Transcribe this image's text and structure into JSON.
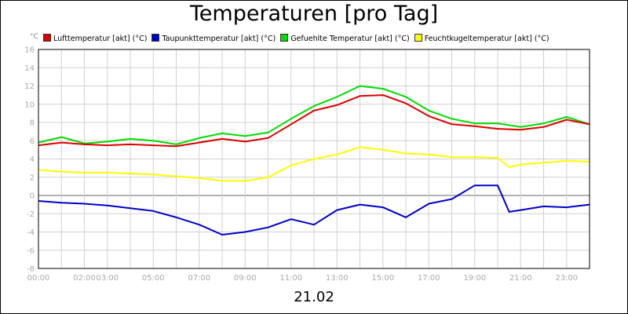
{
  "chart_data": {
    "type": "line",
    "title": "Temperaturen [pro Tag]",
    "date_label": "21.02",
    "y_unit": "°C",
    "ylim": [
      -8,
      16
    ],
    "y_ticks": [
      16,
      14,
      12,
      10,
      8,
      6,
      4,
      2,
      0,
      -2,
      -4,
      -6,
      -8
    ],
    "xlim": [
      0,
      24
    ],
    "x_tick_labels": [
      {
        "label": "00:00",
        "hour": 0
      },
      {
        "label": "02:00",
        "hour": 2
      },
      {
        "label": "03:00",
        "hour": 3
      },
      {
        "label": "05:00",
        "hour": 5
      },
      {
        "label": "07:00",
        "hour": 7
      },
      {
        "label": "09:00",
        "hour": 9
      },
      {
        "label": "11:00",
        "hour": 11
      },
      {
        "label": "13:00",
        "hour": 13
      },
      {
        "label": "15:00",
        "hour": 15
      },
      {
        "label": "17:00",
        "hour": 17
      },
      {
        "label": "19:00",
        "hour": 19
      },
      {
        "label": "21:00",
        "hour": 21
      },
      {
        "label": "23:00",
        "hour": 23
      }
    ],
    "grid": true,
    "series": [
      {
        "name": "Lufttemperatur [akt] (°C)",
        "color": "#dd0000",
        "points": [
          [
            0,
            5.5
          ],
          [
            1,
            5.8
          ],
          [
            2,
            5.6
          ],
          [
            3,
            5.5
          ],
          [
            4,
            5.6
          ],
          [
            5,
            5.5
          ],
          [
            6,
            5.4
          ],
          [
            7,
            5.8
          ],
          [
            8,
            6.2
          ],
          [
            9,
            5.9
          ],
          [
            10,
            6.3
          ],
          [
            11,
            7.8
          ],
          [
            12,
            9.3
          ],
          [
            13,
            9.9
          ],
          [
            14,
            10.9
          ],
          [
            15,
            11.0
          ],
          [
            16,
            10.1
          ],
          [
            17,
            8.7
          ],
          [
            18,
            7.8
          ],
          [
            19,
            7.6
          ],
          [
            20,
            7.3
          ],
          [
            21,
            7.2
          ],
          [
            22,
            7.5
          ],
          [
            23,
            8.3
          ],
          [
            24,
            7.8
          ]
        ]
      },
      {
        "name": "Taupunkttemperatur [akt] (°C)",
        "color": "#0000cc",
        "points": [
          [
            0,
            -0.6
          ],
          [
            1,
            -0.8
          ],
          [
            2,
            -0.9
          ],
          [
            3,
            -1.1
          ],
          [
            4,
            -1.4
          ],
          [
            5,
            -1.7
          ],
          [
            6,
            -2.4
          ],
          [
            7,
            -3.2
          ],
          [
            8,
            -4.3
          ],
          [
            9,
            -4.0
          ],
          [
            10,
            -3.5
          ],
          [
            11,
            -2.6
          ],
          [
            12,
            -3.2
          ],
          [
            13,
            -1.6
          ],
          [
            14,
            -1.0
          ],
          [
            15,
            -1.3
          ],
          [
            16,
            -2.4
          ],
          [
            17,
            -0.9
          ],
          [
            18,
            -0.4
          ],
          [
            19,
            1.1
          ],
          [
            20,
            1.1
          ],
          [
            20.5,
            -1.8
          ],
          [
            21,
            -1.6
          ],
          [
            22,
            -1.2
          ],
          [
            23,
            -1.3
          ],
          [
            24,
            -1.0
          ]
        ]
      },
      {
        "name": "Gefuehlte Temperatur [akt] (°C)",
        "color": "#00dd00",
        "points": [
          [
            0,
            5.8
          ],
          [
            1,
            6.4
          ],
          [
            2,
            5.7
          ],
          [
            3,
            5.9
          ],
          [
            4,
            6.2
          ],
          [
            5,
            6.0
          ],
          [
            6,
            5.6
          ],
          [
            7,
            6.3
          ],
          [
            8,
            6.8
          ],
          [
            9,
            6.5
          ],
          [
            10,
            6.9
          ],
          [
            11,
            8.4
          ],
          [
            12,
            9.8
          ],
          [
            13,
            10.8
          ],
          [
            14,
            12.0
          ],
          [
            15,
            11.7
          ],
          [
            16,
            10.8
          ],
          [
            17,
            9.3
          ],
          [
            18,
            8.4
          ],
          [
            19,
            7.9
          ],
          [
            20,
            7.9
          ],
          [
            21,
            7.5
          ],
          [
            22,
            7.9
          ],
          [
            23,
            8.6
          ],
          [
            24,
            7.8
          ]
        ]
      },
      {
        "name": "Feuchtkugeltemperatur [akt] (°C)",
        "color": "#ffff00",
        "points": [
          [
            0,
            2.8
          ],
          [
            1,
            2.6
          ],
          [
            2,
            2.5
          ],
          [
            3,
            2.5
          ],
          [
            4,
            2.4
          ],
          [
            5,
            2.3
          ],
          [
            6,
            2.1
          ],
          [
            7,
            1.9
          ],
          [
            8,
            1.6
          ],
          [
            9,
            1.6
          ],
          [
            10,
            2.0
          ],
          [
            11,
            3.3
          ],
          [
            12,
            4.0
          ],
          [
            13,
            4.5
          ],
          [
            14,
            5.3
          ],
          [
            15,
            5.0
          ],
          [
            16,
            4.6
          ],
          [
            17,
            4.5
          ],
          [
            18,
            4.2
          ],
          [
            19,
            4.2
          ],
          [
            20,
            4.1
          ],
          [
            20.5,
            3.1
          ],
          [
            21,
            3.4
          ],
          [
            22,
            3.6
          ],
          [
            23,
            3.8
          ],
          [
            24,
            3.7
          ]
        ]
      }
    ]
  }
}
